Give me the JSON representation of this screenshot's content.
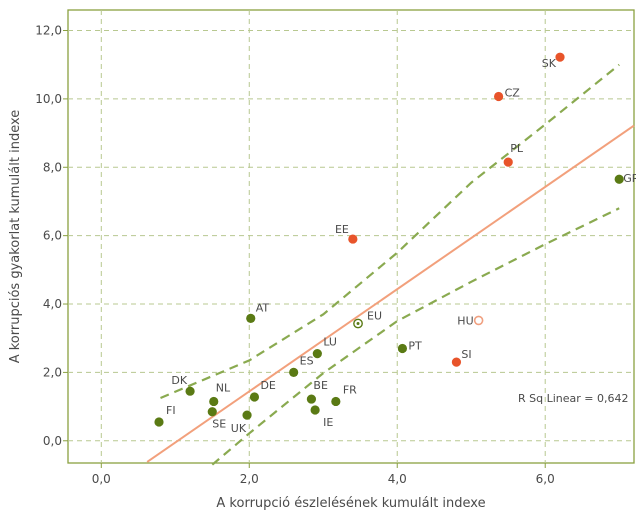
{
  "chart_data": {
    "type": "scatter",
    "xlabel": "A korrupció észlelésének kumulált indexe",
    "ylabel": "A korrupciós gyakorlat kumulált indexe",
    "xlim": [
      -0.45,
      7.2
    ],
    "ylim": [
      -0.65,
      12.6
    ],
    "xticks": [
      0,
      2,
      4,
      6
    ],
    "xtick_labels": [
      "0,0",
      "2,0",
      "4,0",
      "6,0"
    ],
    "yticks": [
      0,
      2,
      4,
      6,
      8,
      10,
      12
    ],
    "ytick_labels": [
      "0,0",
      "2,0",
      "4,0",
      "6,0",
      "8,0",
      "10,0",
      "12,0"
    ],
    "grid": true,
    "annotation": "R Sq Linear = 0,642",
    "colors": {
      "old_member": "#5a7a14",
      "new_member": "#e8542a",
      "hu_marker": "#f0a080",
      "fit_line": "#f2a07c",
      "confidence": "#8aaa50",
      "grid": "#b8c890",
      "frame": "#8aa040"
    },
    "points": [
      {
        "label": "FI",
        "x": 0.78,
        "y": 0.55,
        "group": "old"
      },
      {
        "label": "DK",
        "x": 1.2,
        "y": 1.45,
        "group": "old"
      },
      {
        "label": "NL",
        "x": 1.52,
        "y": 1.15,
        "group": "old"
      },
      {
        "label": "SE",
        "x": 1.5,
        "y": 0.85,
        "group": "old"
      },
      {
        "label": "UK",
        "x": 1.97,
        "y": 0.75,
        "group": "old"
      },
      {
        "label": "DE",
        "x": 2.07,
        "y": 1.28,
        "group": "old"
      },
      {
        "label": "AT",
        "x": 2.02,
        "y": 3.58,
        "group": "old"
      },
      {
        "label": "ES",
        "x": 2.6,
        "y": 2.0,
        "group": "old"
      },
      {
        "label": "LU",
        "x": 2.92,
        "y": 2.55,
        "group": "old"
      },
      {
        "label": "BE",
        "x": 2.84,
        "y": 1.22,
        "group": "old"
      },
      {
        "label": "IE",
        "x": 2.89,
        "y": 0.9,
        "group": "old"
      },
      {
        "label": "FR",
        "x": 3.17,
        "y": 1.15,
        "group": "old"
      },
      {
        "label": "EU",
        "x": 3.47,
        "y": 3.43,
        "group": "eu"
      },
      {
        "label": "PT",
        "x": 4.07,
        "y": 2.7,
        "group": "old"
      },
      {
        "label": "GR",
        "x": 7.0,
        "y": 7.65,
        "group": "old"
      },
      {
        "label": "EE",
        "x": 3.4,
        "y": 5.9,
        "group": "new"
      },
      {
        "label": "CZ",
        "x": 5.37,
        "y": 10.07,
        "group": "new"
      },
      {
        "label": "SK",
        "x": 6.2,
        "y": 11.22,
        "group": "new"
      },
      {
        "label": "PL",
        "x": 5.5,
        "y": 8.15,
        "group": "new"
      },
      {
        "label": "SI",
        "x": 4.8,
        "y": 2.3,
        "group": "new"
      },
      {
        "label": "HU",
        "x": 5.1,
        "y": 3.52,
        "group": "hu"
      }
    ],
    "fit_line": {
      "x": [
        0.62,
        7.2
      ],
      "y": [
        -0.62,
        9.22
      ]
    },
    "upper_band": {
      "x": [
        0.8,
        2.0,
        3.0,
        4.0,
        5.0,
        6.0,
        7.0
      ],
      "y": [
        1.25,
        2.35,
        3.7,
        5.5,
        7.55,
        9.25,
        11.0
      ]
    },
    "lower_band": {
      "x": [
        1.5,
        2.0,
        3.0,
        4.0,
        5.0,
        6.0,
        7.0
      ],
      "y": [
        -0.7,
        0.22,
        1.98,
        3.5,
        4.65,
        5.75,
        6.8
      ]
    }
  }
}
